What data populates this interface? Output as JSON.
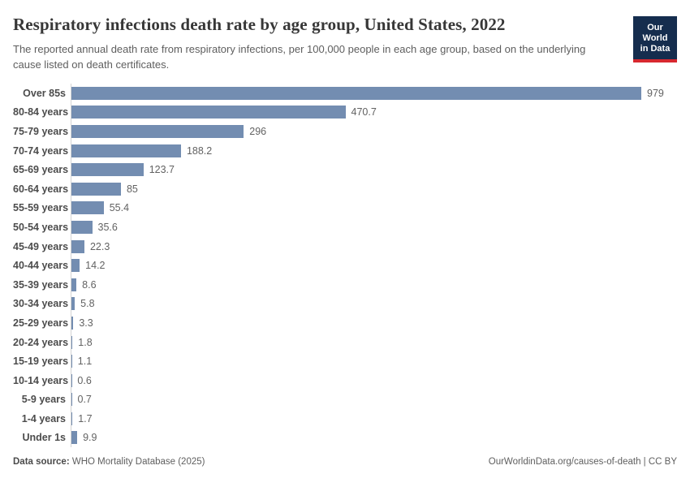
{
  "header": {
    "title": "Respiratory infections death rate by age group, United States, 2022",
    "subtitle": "The reported annual death rate from respiratory infections, per 100,000 people in each age group, based on the underlying cause listed on death certificates.",
    "logo": {
      "line1": "Our World",
      "line2": "in Data",
      "bg_color": "#152d4e",
      "stripe_color": "#d7282f"
    }
  },
  "chart_data": {
    "type": "bar",
    "orientation": "horizontal",
    "title": "Respiratory infections death rate by age group, United States, 2022",
    "xlabel": "",
    "ylabel": "",
    "unit": "deaths per 100,000 people",
    "grid": false,
    "legend": "none",
    "xlim": [
      0,
      1000
    ],
    "bar_color": "#738db1",
    "axis_line_color": "#d4d4d4",
    "categories": [
      "Over 85s",
      "80-84 years",
      "75-79 years",
      "70-74 years",
      "65-69 years",
      "60-64 years",
      "55-59 years",
      "50-54 years",
      "45-49 years",
      "40-44 years",
      "35-39 years",
      "30-34 years",
      "25-29 years",
      "20-24 years",
      "15-19 years",
      "10-14 years",
      "5-9 years",
      "1-4 years",
      "Under 1s"
    ],
    "values": [
      979,
      470.7,
      296,
      188.2,
      123.7,
      85,
      55.4,
      35.6,
      22.3,
      14.2,
      8.6,
      5.8,
      3.3,
      1.8,
      1.1,
      0.6,
      0.7,
      1.7,
      9.9
    ]
  },
  "footer": {
    "source_label": "Data source:",
    "source_text": "WHO Mortality Database (2025)",
    "credit": "OurWorldinData.org/causes-of-death | CC BY"
  }
}
